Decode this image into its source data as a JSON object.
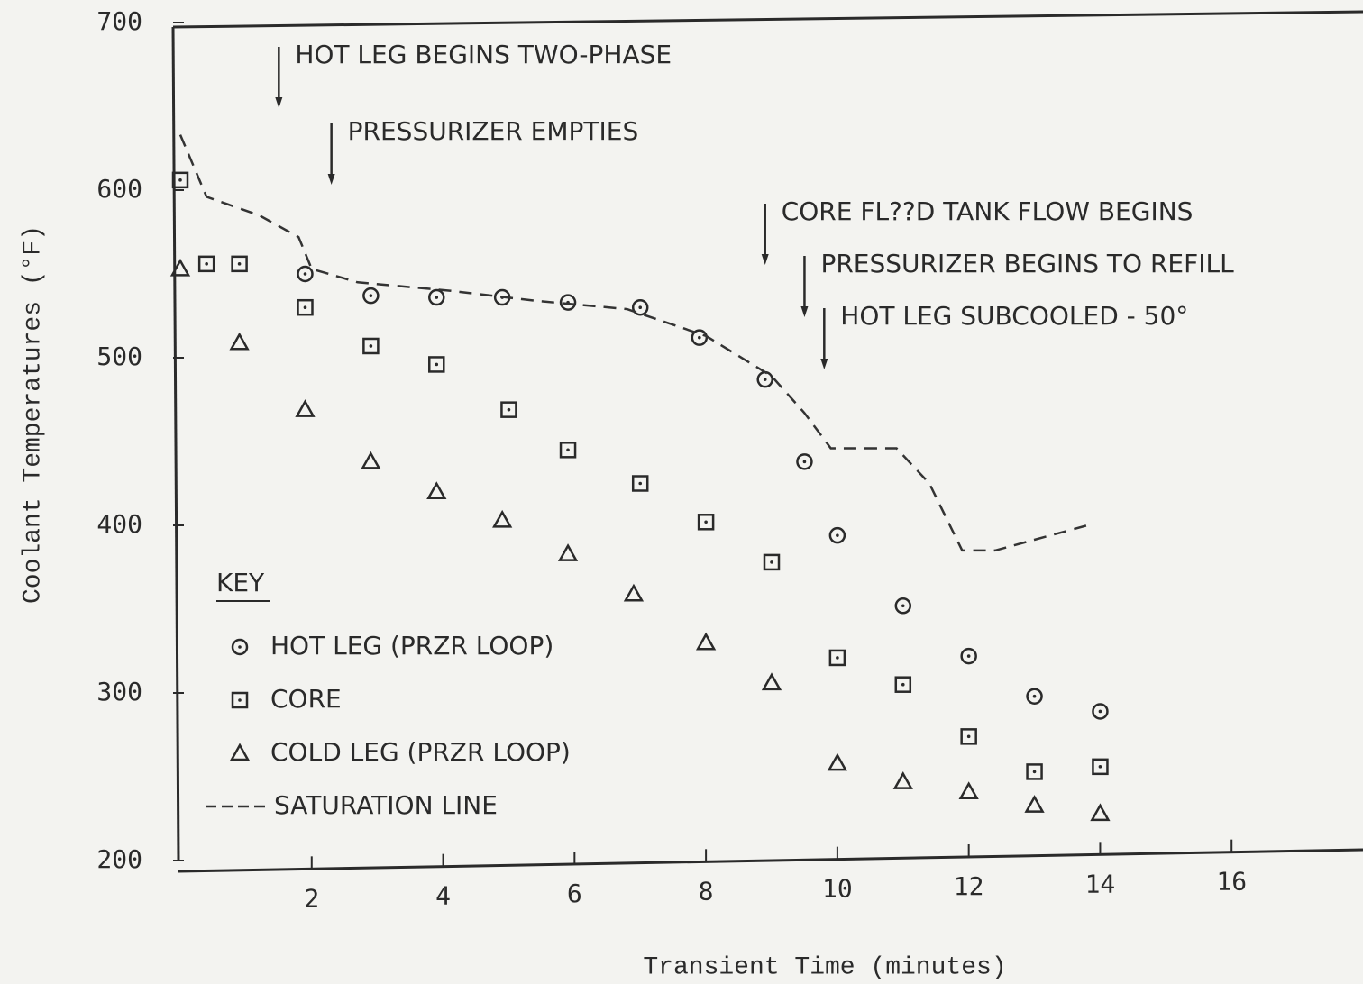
{
  "chart_data": {
    "type": "scatter",
    "xlabel": "Transient Time (minutes)",
    "ylabel": "Coolant Temperatures (°F)",
    "xlim": [
      0,
      18
    ],
    "ylim": [
      200,
      700
    ],
    "xticks": [
      2,
      4,
      6,
      8,
      10,
      12,
      14,
      16
    ],
    "yticks": [
      200,
      300,
      400,
      500,
      600,
      700
    ],
    "grid": false,
    "legend_title": "KEY",
    "legend_position": "lower left",
    "series": [
      {
        "name": "HOT LEG (PRZR LOOP)",
        "marker": "circle",
        "color": "#333333",
        "x": [
          1.9,
          2.9,
          3.9,
          4.9,
          5.9,
          7.0,
          7.9,
          8.9,
          9.5,
          10.0,
          11.0,
          12.0,
          13.0,
          14.0
        ],
        "values": [
          550,
          537,
          536,
          536,
          533,
          530,
          512,
          487,
          438,
          394,
          352,
          322,
          298,
          289
        ]
      },
      {
        "name": "CORE",
        "marker": "square",
        "color": "#333333",
        "x": [
          0,
          0.4,
          0.9,
          1.9,
          2.9,
          3.9,
          5.0,
          5.9,
          7.0,
          8.0,
          9.0,
          10.0,
          11.0,
          12.0,
          13.0,
          14.0
        ],
        "values": [
          606,
          556,
          556,
          530,
          507,
          496,
          469,
          445,
          425,
          402,
          378,
          321,
          305,
          274,
          253,
          256
        ]
      },
      {
        "name": "COLD LEG (PRZR LOOP)",
        "marker": "triangle",
        "color": "#333333",
        "x": [
          0,
          0.9,
          1.9,
          2.9,
          3.9,
          4.9,
          5.9,
          6.9,
          8.0,
          9.0,
          10.0,
          11.0,
          12.0,
          13.0,
          14.0
        ],
        "values": [
          553,
          509,
          469,
          438,
          420,
          403,
          383,
          359,
          330,
          306,
          258,
          247,
          241,
          233,
          228
        ]
      },
      {
        "name": "SATURATION LINE",
        "marker": "dashed-line",
        "color": "#333333",
        "x": [
          0,
          0.4,
          1.2,
          1.8,
          2.0,
          2.7,
          4.1,
          5.4,
          6.8,
          8.0,
          9.0,
          9.5,
          9.9,
          10.9,
          11.4,
          11.9,
          12.4,
          13.9
        ],
        "values": [
          633,
          596,
          585,
          572,
          553,
          545,
          540,
          534,
          529,
          513,
          489,
          467,
          446,
          446,
          425,
          385,
          385,
          401
        ]
      }
    ],
    "annotations": [
      {
        "text": "HOT LEG BEGINS TWO-PHASE",
        "x": 1.5
      },
      {
        "text": "PRESSURIZER EMPTIES",
        "x": 2.3
      },
      {
        "text": "CORE FL??D TANK FLOW BEGINS",
        "x": 8.9
      },
      {
        "text": "PRESSURIZER BEGINS TO REFILL",
        "x": 9.5
      },
      {
        "text": "HOT LEG SUBCOOLED - 50°",
        "x": 9.8
      }
    ]
  }
}
